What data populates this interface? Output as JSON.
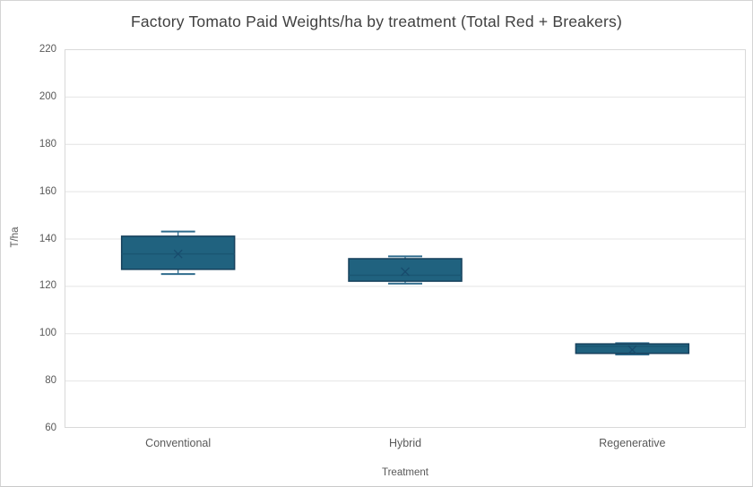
{
  "window": {
    "background": "#ffffff",
    "border_color": "#d4d4d4"
  },
  "chart_data": {
    "type": "box",
    "title": "Factory Tomato Paid Weights/ha by treatment (Total Red + Breakers)",
    "xlabel": "Treatment",
    "ylabel": "T/ha",
    "ylim": [
      60,
      220
    ],
    "yticks": [
      60,
      80,
      100,
      120,
      140,
      160,
      180,
      200,
      220
    ],
    "grid": true,
    "legend": "none",
    "categories": [
      "Conventional",
      "Hybrid",
      "Regenerative"
    ],
    "series": [
      {
        "name": "Conventional",
        "min": 125,
        "q1": 127,
        "median": 133.5,
        "mean": 133.5,
        "q3": 141,
        "max": 143
      },
      {
        "name": "Hybrid",
        "min": 121,
        "q1": 122,
        "median": 124.5,
        "mean": 126,
        "q3": 131.5,
        "max": 132.5
      },
      {
        "name": "Regenerative",
        "min": 91,
        "q1": 91.5,
        "median": 94.5,
        "mean": 93,
        "q3": 95.5,
        "max": 95.8
      }
    ],
    "colors": {
      "box_fill": "#20627f",
      "box_border": "#16405c",
      "median_line": "#1a5672",
      "whisker": "#2f6b8c",
      "mean_marker": "#17496b",
      "gridline": "#e4e4e4",
      "plot_border": "#d9d9d9",
      "title_text": "#404040",
      "axis_text": "#595959"
    }
  }
}
